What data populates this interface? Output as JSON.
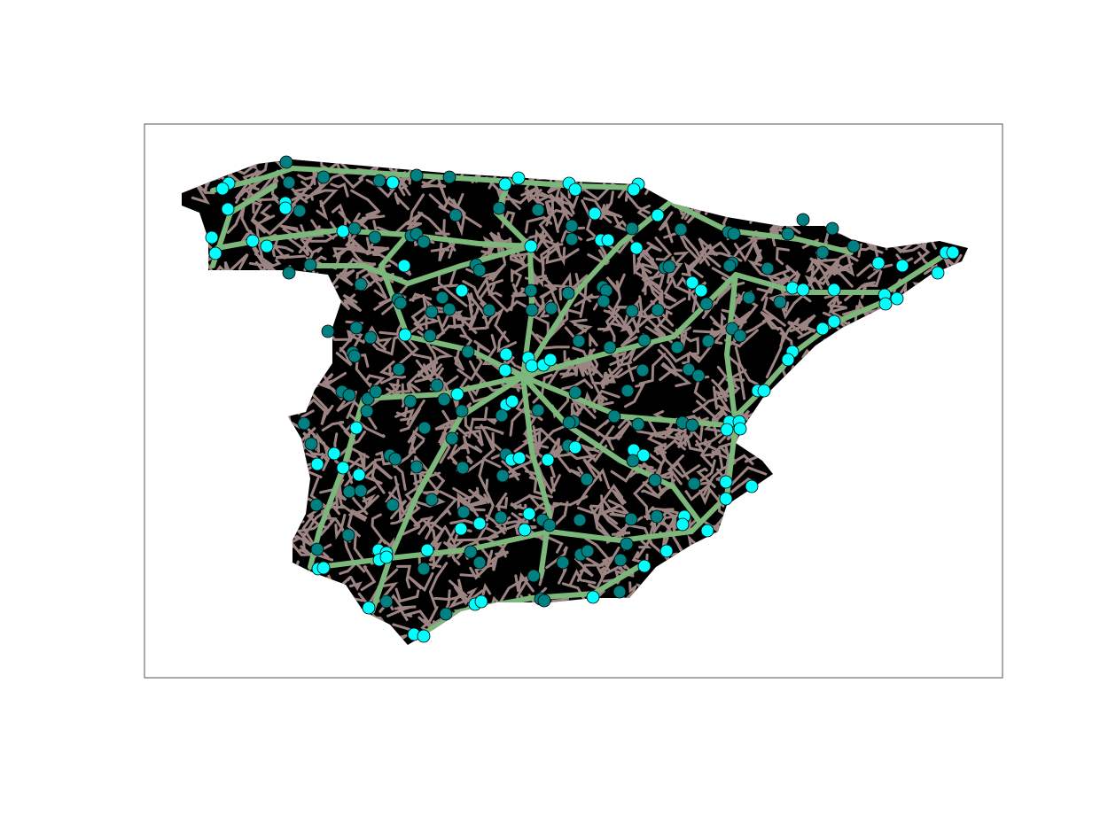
{
  "map": {
    "frame_color": "#555555",
    "land_color": "#000000",
    "road_color": "#9c8482",
    "highway_color": "#7cb77b",
    "node_colors": [
      "#00ffff",
      "#008080"
    ]
  }
}
